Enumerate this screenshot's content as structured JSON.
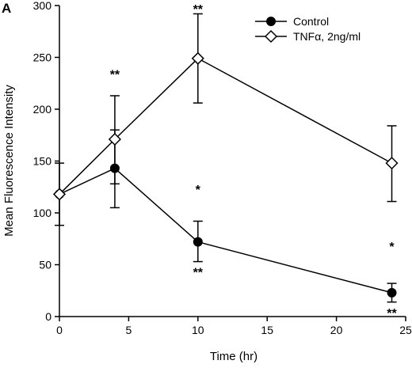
{
  "panel_label": "A",
  "chart_data": {
    "type": "line",
    "xlabel": "Time (hr)",
    "ylabel": "Mean Fluorescence Intensity",
    "xlim": [
      0,
      25
    ],
    "ylim": [
      0,
      300
    ],
    "x_ticks": [
      0,
      5,
      10,
      15,
      20,
      25
    ],
    "y_ticks": [
      0,
      50,
      100,
      150,
      200,
      250,
      300
    ],
    "grid": false,
    "legend_position": "top-right",
    "series": [
      {
        "name": "Control",
        "marker": "filled-circle",
        "color": "#000000",
        "x": [
          0,
          4,
          10,
          24
        ],
        "y": [
          118,
          143,
          72,
          23
        ],
        "error_low": [
          30,
          38,
          19,
          9
        ],
        "error_high": [
          30,
          37,
          20,
          9
        ]
      },
      {
        "name": "TNFα, 2ng/ml",
        "marker": "open-diamond",
        "color": "#000000",
        "x": [
          0,
          4,
          10,
          24
        ],
        "y": [
          118,
          171,
          249,
          148
        ],
        "error_low": [
          0,
          43,
          43,
          37
        ],
        "error_high": [
          0,
          42,
          43,
          36
        ]
      }
    ],
    "annotations": [
      {
        "text": "**",
        "x": 4,
        "y": 234
      },
      {
        "text": "**",
        "x": 10,
        "y": 297
      },
      {
        "text": "*",
        "x": 10,
        "y": 123
      },
      {
        "text": "**",
        "x": 10,
        "y": 43
      },
      {
        "text": "*",
        "x": 24,
        "y": 68
      },
      {
        "text": "**",
        "x": 24,
        "y": 4
      }
    ]
  }
}
